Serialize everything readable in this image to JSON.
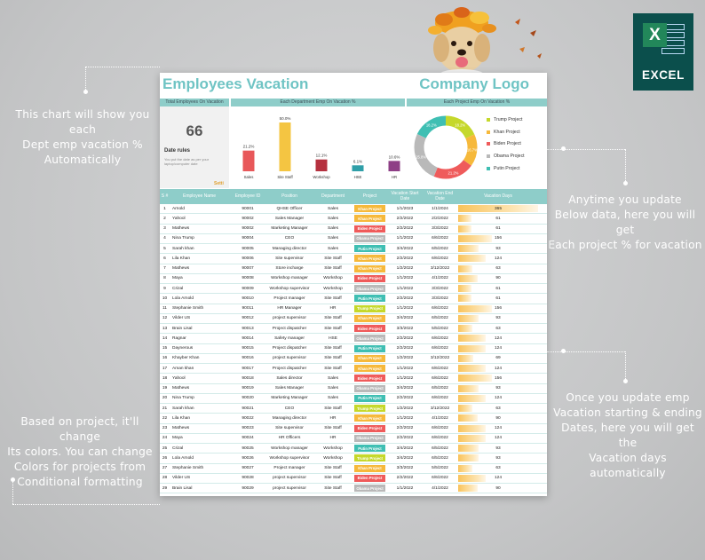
{
  "annotations": {
    "chart_note": [
      "This chart will show you each",
      "Dept emp vacation %",
      "Automatically"
    ],
    "update_note": [
      "Anytime you update",
      "Below data, here you will get",
      "Each project % for vacation"
    ],
    "project_color_note": [
      "Based on project, it'll change",
      "Its colors. You can change",
      "Colors for projects from",
      "Conditional formatting"
    ],
    "vacation_days_note": [
      "Once you update emp",
      "Vacation starting & ending",
      "Dates, here you will get the",
      "Vacation days automatically"
    ]
  },
  "excel_icon": {
    "letter": "X",
    "label": "EXCEL",
    "color": "#0b4f4c"
  },
  "dashboard": {
    "title": "Employees Vacation",
    "logo_text": "Company Logo",
    "total_header": "Total Employees On Vacation",
    "dept_header": "Each Department Emp On Vacation %",
    "project_header": "Each Project Emp On Vacation %",
    "total_value": "66",
    "date_rules_title": "Date rules",
    "date_rules_text": "You put the date as per your laptop/computer date",
    "settings_label": "Setti"
  },
  "chart_data": [
    {
      "type": "bar",
      "title": "Each Department Emp On Vacation %",
      "categories": [
        "Sales",
        "Site Staff",
        "Workshop",
        "HSE",
        "HR"
      ],
      "values": [
        21.2,
        50.0,
        12.1,
        6.1,
        10.6
      ],
      "value_labels": [
        "21.2%",
        "50.0%",
        "12.1%",
        "6.1%",
        "10.6%"
      ],
      "colors": [
        "#e8585a",
        "#f4c542",
        "#b5313f",
        "#2f9fa8",
        "#8e3f86"
      ],
      "ylim": [
        0,
        50
      ]
    },
    {
      "type": "pie",
      "style": "donut",
      "title": "Each Project Emp On Vacation %",
      "categories": [
        "Trump Project",
        "Khan Project",
        "Biden Project",
        "Obama Project",
        "Putin Project"
      ],
      "values": [
        18.2,
        16.7,
        21.2,
        25.8,
        18.2
      ],
      "value_labels": [
        "18.2%",
        "16.7%",
        "21.2%",
        "25.8%",
        "18.2%"
      ],
      "colors": [
        "#c5d82b",
        "#f6b93b",
        "#ef5b5b",
        "#b9b9b9",
        "#3fbfb3"
      ],
      "legend": "right"
    }
  ],
  "table": {
    "headers": [
      "S #",
      "Employee Name",
      "Employee ID",
      "Position",
      "Department",
      "Project",
      "Vacation Start Date",
      "Vacation End Date",
      "Vacation Days"
    ],
    "project_colors": {
      "Khan Project": "#f6b93b",
      "Biden Project": "#ef5b5b",
      "Obama Project": "#b9b9b9",
      "Putin Project": "#3fbfb3",
      "Trump Project": "#c5d82b"
    },
    "max_days": 365,
    "rows": [
      [
        "1",
        "Arnold",
        "90001",
        "QHSE Officer",
        "Sales",
        "Khan Project",
        "1/1/2023",
        "1/1/2024",
        "365"
      ],
      [
        "2",
        "Yahool",
        "90002",
        "Sales Manager",
        "Sales",
        "Khan Project",
        "2/2/2022",
        "2/2/2022",
        "61"
      ],
      [
        "3",
        "Mathews",
        "90002",
        "Marketing Manager",
        "Sales",
        "Biden Project",
        "2/2/2022",
        "3/3/2022",
        "61"
      ],
      [
        "4",
        "Nina Trump",
        "90004",
        "CEO",
        "Sales",
        "Obama Project",
        "1/1/2022",
        "6/6/2022",
        "156"
      ],
      [
        "5",
        "Sarah khan",
        "90005",
        "Managing director",
        "Sales",
        "Putin Project",
        "3/4/2022",
        "6/5/2022",
        "93"
      ],
      [
        "6",
        "Lila Khan",
        "90006",
        "Site supervisor",
        "Site Staff",
        "Khan Project",
        "2/2/2022",
        "6/6/2022",
        "124"
      ],
      [
        "7",
        "Mathews",
        "90007",
        "Store incharge",
        "Site Staff",
        "Khan Project",
        "1/2/2022",
        "3/12/2022",
        "63"
      ],
      [
        "8",
        "Maya",
        "90008",
        "Workshop manager",
        "Workshop",
        "Biden Project",
        "1/1/2022",
        "4/1/2022",
        "90"
      ],
      [
        "9",
        "Crizal",
        "90009",
        "Workshop supervisor",
        "Workshop",
        "Obama Project",
        "1/1/2022",
        "3/3/2022",
        "61"
      ],
      [
        "10",
        "Lola Arnold",
        "90010",
        "Project manager",
        "Site Staff",
        "Putin Project",
        "2/2/2022",
        "3/3/2022",
        "61"
      ],
      [
        "11",
        "Stephanie Smith",
        "90011",
        "HR Manager",
        "HR",
        "Trump Project",
        "1/1/2022",
        "6/6/2022",
        "156"
      ],
      [
        "12",
        "Vilder US",
        "90012",
        "project supervisor",
        "Site Staff",
        "Khan Project",
        "3/4/2022",
        "6/5/2022",
        "93"
      ],
      [
        "13",
        "Brain Lisal",
        "90013",
        "Project dispatcher",
        "Site Staff",
        "Biden Project",
        "3/3/2022",
        "5/5/2022",
        "63"
      ],
      [
        "14",
        "Ragnar",
        "90014",
        "Safety manager",
        "HSE",
        "Obama Project",
        "2/2/2022",
        "6/6/2022",
        "124"
      ],
      [
        "15",
        "Daynerous",
        "90015",
        "Project dispatcher",
        "Site Staff",
        "Putin Project",
        "2/2/2022",
        "6/6/2022",
        "124"
      ],
      [
        "16",
        "Khayber Khan",
        "90016",
        "project supervisor",
        "Site Staff",
        "Khan Project",
        "1/2/2022",
        "3/12/2022",
        "69"
      ],
      [
        "17",
        "Aman khan",
        "90017",
        "Project dispatcher",
        "Site Staff",
        "Khan Project",
        "1/1/2022",
        "6/6/2022",
        "124"
      ],
      [
        "18",
        "Yahool",
        "90018",
        "Sales director",
        "Sales",
        "Biden Project",
        "1/1/2022",
        "6/6/2022",
        "156"
      ],
      [
        "19",
        "Mathews",
        "90019",
        "Sales Manager",
        "Sales",
        "Obama Project",
        "3/4/2022",
        "6/5/2022",
        "93"
      ],
      [
        "20",
        "Nina Trump",
        "90020",
        "Marketing Manager",
        "Sales",
        "Putin Project",
        "2/2/2022",
        "6/6/2022",
        "124"
      ],
      [
        "21",
        "Sarah khan",
        "90021",
        "CEO",
        "Site Staff",
        "Trump Project",
        "1/2/2022",
        "3/12/2022",
        "63"
      ],
      [
        "22",
        "Lila Khan",
        "90022",
        "Managing director",
        "HR",
        "Khan Project",
        "1/1/2022",
        "4/1/2022",
        "90"
      ],
      [
        "23",
        "Mathews",
        "90023",
        "Site supervisor",
        "Site Staff",
        "Biden Project",
        "2/2/2022",
        "6/6/2022",
        "124"
      ],
      [
        "24",
        "Maya",
        "90024",
        "HR Officers",
        "HR",
        "Obama Project",
        "2/2/2022",
        "6/6/2022",
        "124"
      ],
      [
        "25",
        "Crizal",
        "90025",
        "Workshop manager",
        "Workshop",
        "Putin Project",
        "3/4/2022",
        "6/5/2022",
        "93"
      ],
      [
        "26",
        "Lola Arnold",
        "90026",
        "Workshop supervisor",
        "Workshop",
        "Trump Project",
        "3/4/2022",
        "6/5/2022",
        "93"
      ],
      [
        "27",
        "Stephanie Smith",
        "90027",
        "Project manager",
        "Site Staff",
        "Khan Project",
        "3/3/2022",
        "5/5/2022",
        "63"
      ],
      [
        "28",
        "Vilder US",
        "90028",
        "project supervisor",
        "Site Staff",
        "Biden Project",
        "2/2/2022",
        "6/6/2022",
        "124"
      ],
      [
        "29",
        "Brain Lisal",
        "90029",
        "project supervisor",
        "Site Staff",
        "Obama Project",
        "1/1/2022",
        "4/1/2022",
        "90"
      ]
    ]
  }
}
